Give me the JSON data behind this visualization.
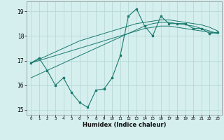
{
  "xlabel": "Humidex (Indice chaleur)",
  "bg_color": "#d5eeee",
  "line_color": "#1a7a6e",
  "grid_color": "#b8d8d8",
  "x_data": [
    0,
    1,
    2,
    3,
    4,
    5,
    6,
    7,
    8,
    9,
    10,
    11,
    12,
    13,
    14,
    15,
    16,
    17,
    18,
    19,
    20,
    21,
    22,
    23
  ],
  "y_main": [
    16.9,
    17.1,
    16.6,
    16.0,
    16.3,
    15.7,
    15.3,
    15.1,
    15.8,
    15.85,
    16.3,
    17.2,
    18.8,
    19.1,
    18.4,
    18.0,
    18.8,
    18.5,
    18.5,
    18.5,
    18.3,
    18.3,
    18.1,
    18.15
  ],
  "y_trend_upper": [
    16.9,
    17.05,
    17.2,
    17.35,
    17.5,
    17.65,
    17.8,
    17.9,
    18.0,
    18.1,
    18.2,
    18.3,
    18.4,
    18.5,
    18.55,
    18.6,
    18.65,
    18.65,
    18.6,
    18.55,
    18.5,
    18.45,
    18.35,
    18.2
  ],
  "y_trend_mid": [
    16.9,
    17.0,
    17.1,
    17.2,
    17.3,
    17.4,
    17.5,
    17.6,
    17.7,
    17.8,
    17.9,
    18.0,
    18.1,
    18.2,
    18.3,
    18.35,
    18.4,
    18.4,
    18.35,
    18.3,
    18.25,
    18.2,
    18.15,
    18.1
  ],
  "y_trend_lower": [
    16.3,
    16.45,
    16.6,
    16.75,
    16.9,
    17.05,
    17.2,
    17.35,
    17.5,
    17.65,
    17.8,
    17.95,
    18.1,
    18.25,
    18.4,
    18.5,
    18.55,
    18.55,
    18.5,
    18.45,
    18.4,
    18.3,
    18.2,
    18.1
  ],
  "xlim": [
    -0.5,
    23.5
  ],
  "ylim": [
    14.8,
    19.4
  ],
  "yticks": [
    15,
    16,
    17,
    18,
    19
  ],
  "xticks": [
    0,
    1,
    2,
    3,
    4,
    5,
    6,
    7,
    8,
    9,
    10,
    11,
    12,
    13,
    14,
    15,
    16,
    17,
    18,
    19,
    20,
    21,
    22,
    23
  ]
}
